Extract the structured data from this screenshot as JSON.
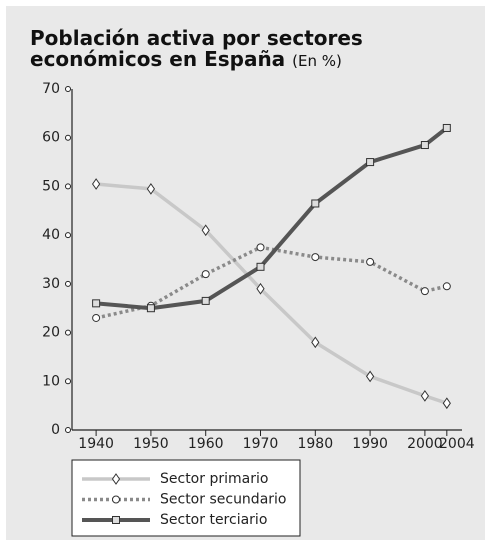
{
  "chart_data": {
    "type": "line",
    "title": "Población activa por sectores económicos en España",
    "subtitle": "(En %)",
    "x": [
      1940,
      1950,
      1960,
      1970,
      1980,
      1990,
      2000,
      2004
    ],
    "series": [
      {
        "name": "Sector primario",
        "color": "#c8c8c8",
        "marker": "diamond",
        "dash": "solid",
        "values": [
          50.5,
          49.5,
          41,
          29,
          18,
          11,
          7,
          5.5
        ]
      },
      {
        "name": "Sector secundario",
        "color": "#8a8a8a",
        "marker": "circle",
        "dash": "dotted",
        "values": [
          23,
          25.5,
          32,
          37.5,
          35.5,
          34.5,
          28.5,
          29.5
        ]
      },
      {
        "name": "Sector terciario",
        "color": "#555555",
        "marker": "square",
        "dash": "solid",
        "values": [
          26,
          25,
          26.5,
          33.5,
          46.5,
          55,
          58.5,
          62
        ]
      }
    ],
    "xlim": [
      1935.6,
      2007.5
    ],
    "xticks": [
      1940,
      1950,
      1960,
      1970,
      1980,
      1990,
      2000,
      2004
    ],
    "ylim": [
      0,
      70
    ],
    "yticks": [
      0,
      10,
      20,
      30,
      40,
      50,
      60,
      70
    ],
    "grid": false
  }
}
